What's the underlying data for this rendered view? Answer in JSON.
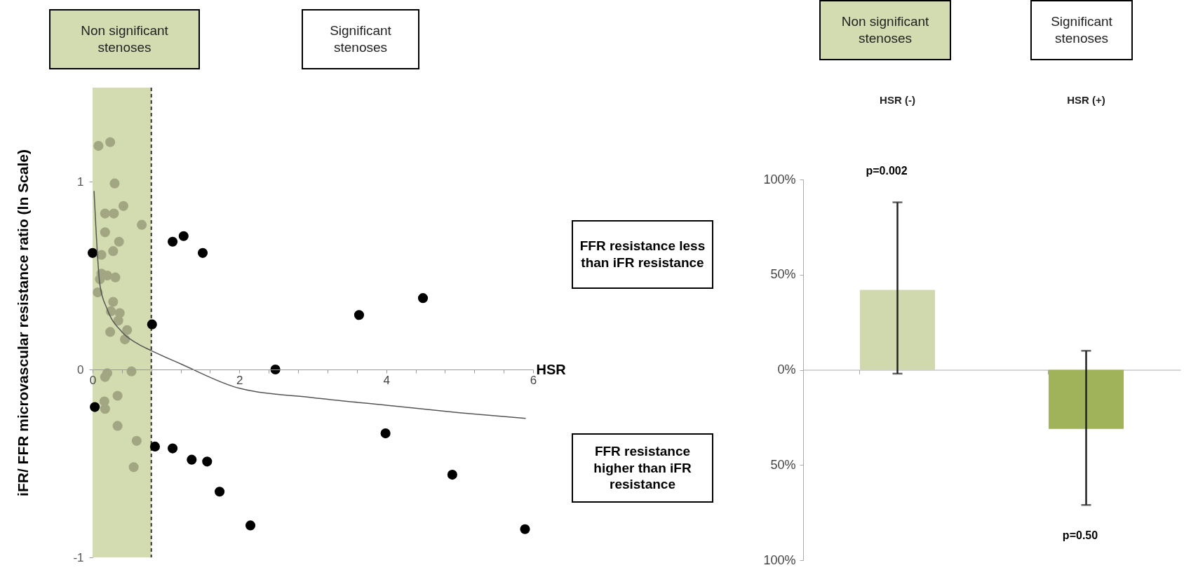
{
  "chart_data": [
    {
      "type": "scatter",
      "xlabel": "HSR",
      "ylabel": "iFR/ FFR microvascular resistance ratio (ln Scale)",
      "xlim": [
        0,
        6
      ],
      "ylim": [
        -1,
        1.5
      ],
      "xticks": [
        0,
        {
          "value": 0.4,
          "label": null
        },
        {
          "value": 0.8,
          "label": null
        },
        {
          "value": 1.2,
          "label": null
        },
        {
          "value": 1.6,
          "label": null
        },
        2,
        {
          "value": 2.4,
          "label": null
        },
        {
          "value": 2.8,
          "label": null
        },
        {
          "value": 3.2,
          "label": null
        },
        {
          "value": 3.6,
          "label": null
        },
        4,
        {
          "value": 4.4,
          "label": null
        },
        {
          "value": 4.8,
          "label": null
        },
        {
          "value": 5.2,
          "label": null
        },
        {
          "value": 5.6,
          "label": null
        },
        6
      ],
      "yticks": [
        -1,
        0,
        1
      ],
      "grid": false,
      "marker": "circle",
      "bands": [
        {
          "axis": "x",
          "from": 0,
          "to": 0.8,
          "color": "#d3dcb0"
        }
      ],
      "ref_lines": [
        {
          "axis": "x",
          "value": 0.8,
          "color": "#333333",
          "line_style": "dashed"
        }
      ],
      "annotations": [
        "Non significant stenoses",
        "Significant stenoses",
        "FFR resistance less than iFR resistance",
        "FFR resistance higher than iFR resistance"
      ],
      "series": [
        {
          "color": "#a3a683",
          "x": [
            0.08,
            0.24,
            0.3,
            0.17,
            0.29,
            0.42,
            0.67,
            0.17,
            0.36,
            0.28,
            0.12,
            0.12,
            0.2,
            0.31,
            0.1,
            0.07,
            0.28,
            0.25,
            0.37,
            0.35,
            0.47,
            0.24,
            0.44,
            0.53,
            0.2,
            0.17,
            0.34,
            0.16,
            0.17,
            0.34,
            0.6,
            0.56
          ],
          "values": [
            1.19,
            1.21,
            0.99,
            0.83,
            0.83,
            0.87,
            0.77,
            0.73,
            0.68,
            0.63,
            0.61,
            0.51,
            0.5,
            0.49,
            0.48,
            0.41,
            0.36,
            0.31,
            0.3,
            0.26,
            0.21,
            0.2,
            0.16,
            -0.01,
            -0.02,
            -0.04,
            -0.14,
            -0.17,
            -0.21,
            -0.3,
            -0.38,
            -0.52
          ]
        },
        {
          "color": "#000000",
          "x": [
            0,
            0.03,
            0.81,
            1.09,
            1.24,
            1.5,
            3.63,
            4.5,
            2.49,
            3.99,
            0.85,
            1.09,
            1.35,
            1.56,
            1.73,
            2.15,
            4.9,
            5.89
          ],
          "values": [
            0.62,
            -0.2,
            0.24,
            0.68,
            0.71,
            0.62,
            0.29,
            0.38,
            0,
            -0.34,
            -0.41,
            -0.42,
            -0.48,
            -0.49,
            -0.65,
            -0.83,
            -0.56,
            -0.85
          ]
        },
        {
          "type": "line",
          "color": "#555555",
          "marker": "none",
          "x": [
            0.02,
            0.1,
            0.2,
            0.4,
            0.6,
            0.8,
            1.2,
            2,
            3,
            4,
            5,
            5.9
          ],
          "values": [
            0.95,
            0.45,
            0.32,
            0.2,
            0.14,
            0.1,
            0.03,
            -0.1,
            -0.15,
            -0.19,
            -0.23,
            -0.26
          ]
        }
      ]
    },
    {
      "type": "bar",
      "categories": [
        "HSR (-)",
        "HSR (+)"
      ],
      "values": [
        42,
        -31
      ],
      "colors": [
        "#d0d9ad",
        "#a0b35a"
      ],
      "errors": [
        [
          -2,
          88
        ],
        [
          -71,
          10
        ]
      ],
      "ylim": [
        -100,
        100
      ],
      "yticks": [
        {
          "value": -100,
          "label": "100%"
        },
        {
          "value": -50,
          "label": "50%"
        },
        {
          "value": 0,
          "label": "0%"
        },
        {
          "value": 50,
          "label": "50%"
        },
        {
          "value": 100,
          "label": "100%"
        }
      ],
      "annotations": [
        "Non significant stenoses",
        "Significant stenoses",
        "p=0.002",
        "p=0.50"
      ]
    }
  ]
}
